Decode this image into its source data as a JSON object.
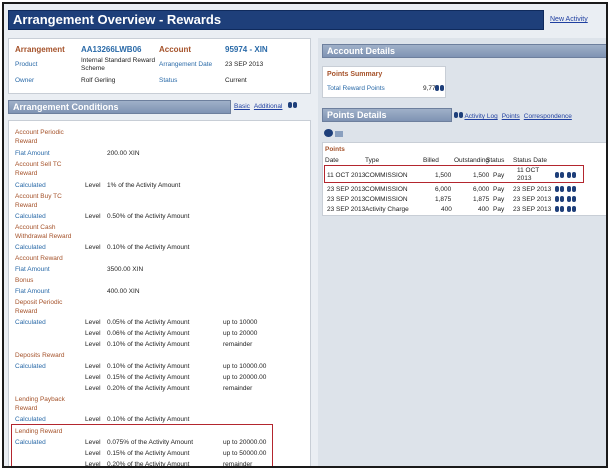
{
  "title": "Arrangement Overview - Rewards",
  "new_activity": "New Activity",
  "header": {
    "arrangement_label": "Arrangement",
    "arrangement_value": "AA13266LWB06",
    "account_label": "Account",
    "account_value": "95974 - XIN",
    "product_label": "Product",
    "product_value_1": "Internal Standard Reward",
    "product_value_2": "Scheme",
    "arr_date_label": "Arrangement Date",
    "arr_date_value": "23 SEP 2013",
    "owner_label": "Owner",
    "owner_value": "Rolf Gerling",
    "status_label": "Status",
    "status_value": "Current"
  },
  "conditions": {
    "title": "Arrangement Conditions",
    "links": [
      "Basic",
      "Additional"
    ]
  },
  "account_details": {
    "title": "Account Details"
  },
  "points_summary": {
    "title": "Points Summary",
    "total_label": "Total Reward Points",
    "total_value": "9,775"
  },
  "points_details": {
    "title": "Points Details",
    "links": [
      "Activity Log",
      "Points",
      "Correspondence"
    ]
  },
  "points": {
    "title": "Points",
    "columns": [
      "Date",
      "Type",
      "Billed",
      "Outstanding",
      "Status",
      "Status Date"
    ],
    "rows": [
      {
        "date": "11 OCT 2013",
        "type": "COMMISSION",
        "billed": "1,500",
        "outstanding": "1,500",
        "status": "Pay",
        "status_date_1": "11 OCT",
        "status_date_2": "2013"
      },
      {
        "date": "23 SEP 2013",
        "type": "COMMISSION",
        "billed": "6,000",
        "outstanding": "6,000",
        "status": "Pay",
        "status_date_1": "23 SEP 2013",
        "status_date_2": ""
      },
      {
        "date": "23 SEP 2013",
        "type": "COMMISSION",
        "billed": "1,875",
        "outstanding": "1,875",
        "status": "Pay",
        "status_date_1": "23 SEP 2013",
        "status_date_2": ""
      },
      {
        "date": "23 SEP 2013",
        "type": "Activity Charge",
        "billed": "400",
        "outstanding": "400",
        "status": "Pay",
        "status_date_1": "23 SEP 2013",
        "status_date_2": ""
      }
    ]
  },
  "cond_rows": {
    "r0a": "Account Periodic",
    "r0b": "Reward",
    "r1a": "Flat Amount",
    "r1c": "200.00 XIN",
    "r2a": "Account Sell TC",
    "r2b": "Reward",
    "r3a": "Calculated",
    "r3b": "Level",
    "r3c": "1% of the Activity Amount",
    "r4a": "Account Buy TC",
    "r4b": "Reward",
    "r5a": "Calculated",
    "r5b": "Level",
    "r5c": "0.50% of the Activity Amount",
    "r6a": "Account Cash",
    "r6b": "Withdrawal Reward",
    "r7a": "Calculated",
    "r7b": "Level",
    "r7c": "0.10% of the Activity Amount",
    "r8a": "Account Reward",
    "r9a": "Flat Amount",
    "r9c": "3500.00 XIN",
    "r10a": "Bonus",
    "r11a": "Flat Amount",
    "r11c": "400.00 XIN",
    "r12a": "Deposit Periodic",
    "r12b": "Reward",
    "r13a": "Calculated",
    "r13b": "Level",
    "r13c": "0.05% of the Activity Amount",
    "r13d": "up to 10000",
    "r14b": "Level",
    "r14c": "0.06% of the Activity Amount",
    "r14d": "up to 20000",
    "r15b": "Level",
    "r15c": "0.10% of the Activity Amount",
    "r15d": "remainder",
    "r16a": "Deposits Reward",
    "r17a": "Calculated",
    "r17b": "Level",
    "r17c": "0.10% of the Activity Amount",
    "r17d": "up to 10000.00",
    "r18b": "Level",
    "r18c": "0.15% of the Activity Amount",
    "r18d": "up to 20000.00",
    "r19b": "Level",
    "r19c": "0.20% of the Activity Amount",
    "r19d": "remainder",
    "r20a": "Lending Payback",
    "r20b": "Reward",
    "r21a": "Calculated",
    "r21b": "Level",
    "r21c": "0.10% of the Activity Amount",
    "r22a": "Lending Reward",
    "r23a": "Calculated",
    "r23b": "Level",
    "r23c": "0.075% of the Activity Amount",
    "r23d": "up to 20000.00",
    "r24b": "Level",
    "r24c": "0.15% of the Activity Amount",
    "r24d": "up to 50000.00",
    "r25b": "Level",
    "r25c": "0.20% of the Activity Amount",
    "r25d": "remainder"
  }
}
